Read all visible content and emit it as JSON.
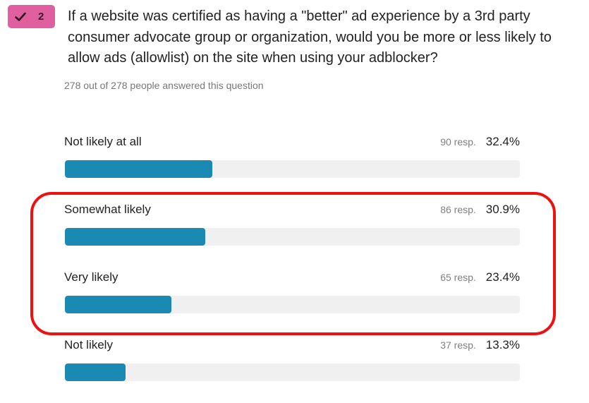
{
  "badge": {
    "check_icon": "check-icon",
    "number": "2",
    "color": "#e0609f"
  },
  "question": {
    "text": "If a website was certified as having a \"better\" ad experience by a 3rd party consumer advocate group or organization, would you be more or less likely to allow ads (allowlist) on the site when using your adblocker?",
    "answered": "278 out of 278 people answered this question"
  },
  "chart_data": {
    "type": "bar",
    "orientation": "horizontal",
    "categories": [
      "Not likely at all",
      "Somewhat likely",
      "Very likely",
      "Not likely"
    ],
    "responses": [
      90,
      86,
      65,
      37
    ],
    "values": [
      32.4,
      30.9,
      23.4,
      13.3
    ],
    "value_labels": [
      "32.4%",
      "30.9%",
      "23.4%",
      "13.3%"
    ],
    "response_labels": [
      "90 resp.",
      "86 resp.",
      "65 resp.",
      "37 resp."
    ],
    "xlim": [
      0,
      100
    ],
    "bar_color": "#1a8ab5",
    "track_color": "#f0f0f0",
    "highlight_color": "#ee1111"
  }
}
